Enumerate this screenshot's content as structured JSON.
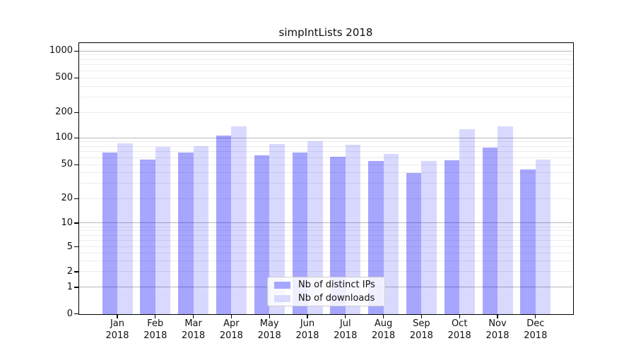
{
  "title": "simpIntLists 2018",
  "colors": {
    "bar_distinct_ips": "rgba(0,0,255,0.35)",
    "bar_downloads": "rgba(0,0,255,0.15)",
    "bar_distinct_ips_hex": "#a6a6ff",
    "bar_downloads_hex": "#d9d9ff",
    "gridline_major": "#b9b9b9",
    "gridline_minor": "#ececec",
    "axis": "#000000"
  },
  "chart_data": {
    "type": "bar",
    "title": "simpIntLists 2018",
    "categories": [
      "Jan",
      "Feb",
      "Mar",
      "Apr",
      "May",
      "Jun",
      "Jul",
      "Aug",
      "Sep",
      "Oct",
      "Nov",
      "Dec"
    ],
    "x_tick_year": "2018",
    "series": [
      {
        "name": "Nb of distinct IPs",
        "values": [
          68,
          57,
          69,
          107,
          64,
          69,
          61,
          55,
          40,
          56,
          78,
          44
        ]
      },
      {
        "name": "Nb of downloads",
        "values": [
          87,
          79,
          80,
          136,
          85,
          91,
          83,
          66,
          55,
          126,
          137,
          57
        ]
      }
    ],
    "y_axis": {
      "scale": "symlog",
      "tick_values": [
        0,
        1,
        2,
        5,
        10,
        20,
        50,
        100,
        200,
        500,
        1000
      ],
      "tick_labels": [
        "0",
        "1",
        "2",
        "5",
        "10",
        "20",
        "50",
        "100",
        "200",
        "500",
        "1000"
      ],
      "range": [
        0,
        1300
      ]
    },
    "grid": "horizontal major+minor",
    "legend_position": "lower center inside plot"
  },
  "legend": {
    "items": [
      {
        "label": "Nb of distinct IPs"
      },
      {
        "label": "Nb of downloads"
      }
    ]
  }
}
